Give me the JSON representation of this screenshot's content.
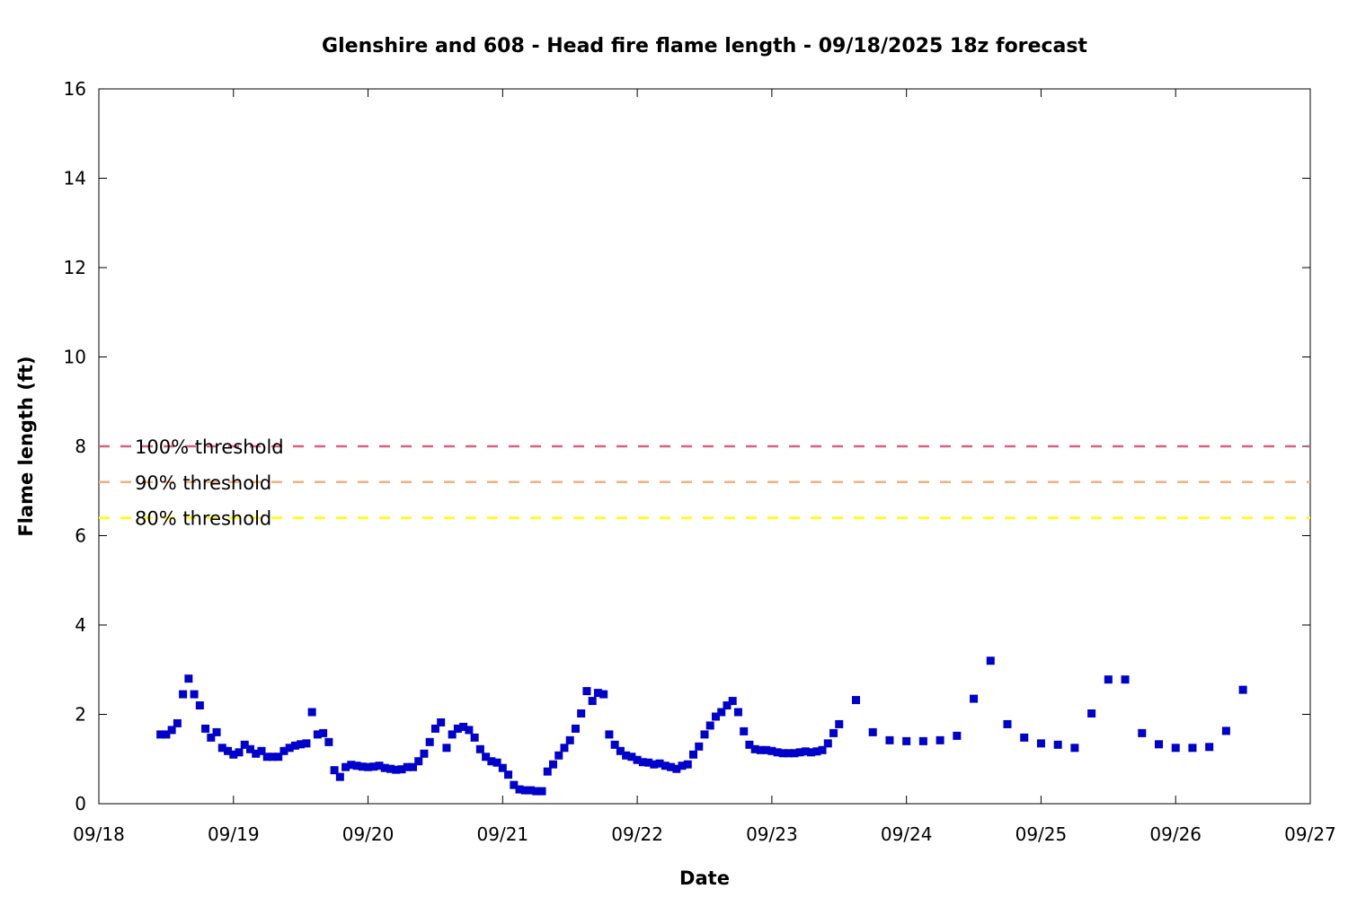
{
  "chart_data": {
    "type": "scatter",
    "title": "Glenshire and 608 - Head fire flame length - 09/18/2025 18z forecast",
    "xlabel": "Date",
    "ylabel": "Flame length (ft)",
    "xlim": [
      "09/18 00:00",
      "09/27 00:00"
    ],
    "ylim": [
      0,
      16
    ],
    "x_ticks": [
      "09/18",
      "09/19",
      "09/20",
      "09/21",
      "09/22",
      "09/23",
      "09/24",
      "09/25",
      "09/26",
      "09/27"
    ],
    "y_ticks": [
      "0",
      "2",
      "4",
      "6",
      "8",
      "10",
      "12",
      "14",
      "16"
    ],
    "grid": false,
    "legend": "left",
    "thresholds": [
      {
        "label": "100% threshold",
        "value": 8.0,
        "color": "#d9607f"
      },
      {
        "label": "90% threshold",
        "value": 7.2,
        "color": "#f2b080"
      },
      {
        "label": "80% threshold",
        "value": 6.4,
        "color": "#ffff00"
      }
    ],
    "series": [
      {
        "color": "#0000cc",
        "points": [
          [
            "09/18 11:00",
            1.55
          ],
          [
            "09/18 12:00",
            1.55
          ],
          [
            "09/18 13:00",
            1.65
          ],
          [
            "09/18 14:00",
            1.8
          ],
          [
            "09/18 15:00",
            2.45
          ],
          [
            "09/18 16:00",
            2.8
          ],
          [
            "09/18 17:00",
            2.45
          ],
          [
            "09/18 18:00",
            2.2
          ],
          [
            "09/18 19:00",
            1.68
          ],
          [
            "09/18 20:00",
            1.48
          ],
          [
            "09/18 21:00",
            1.6
          ],
          [
            "09/18 22:00",
            1.25
          ],
          [
            "09/18 23:00",
            1.18
          ],
          [
            "09/19 00:00",
            1.1
          ],
          [
            "09/19 01:00",
            1.15
          ],
          [
            "09/19 02:00",
            1.32
          ],
          [
            "09/19 03:00",
            1.22
          ],
          [
            "09/19 04:00",
            1.12
          ],
          [
            "09/19 05:00",
            1.18
          ],
          [
            "09/19 06:00",
            1.05
          ],
          [
            "09/19 07:00",
            1.05
          ],
          [
            "09/19 08:00",
            1.05
          ],
          [
            "09/19 09:00",
            1.18
          ],
          [
            "09/19 10:00",
            1.25
          ],
          [
            "09/19 11:00",
            1.3
          ],
          [
            "09/19 12:00",
            1.33
          ],
          [
            "09/19 13:00",
            1.35
          ],
          [
            "09/19 14:00",
            2.05
          ],
          [
            "09/19 15:00",
            1.55
          ],
          [
            "09/19 16:00",
            1.58
          ],
          [
            "09/19 17:00",
            1.38
          ],
          [
            "09/19 18:00",
            0.75
          ],
          [
            "09/19 19:00",
            0.6
          ],
          [
            "09/19 20:00",
            0.82
          ],
          [
            "09/19 21:00",
            0.87
          ],
          [
            "09/19 22:00",
            0.85
          ],
          [
            "09/19 23:00",
            0.83
          ],
          [
            "09/20 00:00",
            0.82
          ],
          [
            "09/20 01:00",
            0.83
          ],
          [
            "09/20 02:00",
            0.85
          ],
          [
            "09/20 03:00",
            0.8
          ],
          [
            "09/20 04:00",
            0.78
          ],
          [
            "09/20 05:00",
            0.76
          ],
          [
            "09/20 06:00",
            0.77
          ],
          [
            "09/20 07:00",
            0.82
          ],
          [
            "09/20 08:00",
            0.82
          ],
          [
            "09/20 09:00",
            0.95
          ],
          [
            "09/20 10:00",
            1.12
          ],
          [
            "09/20 11:00",
            1.38
          ],
          [
            "09/20 12:00",
            1.68
          ],
          [
            "09/20 13:00",
            1.82
          ],
          [
            "09/20 14:00",
            1.25
          ],
          [
            "09/20 15:00",
            1.55
          ],
          [
            "09/20 16:00",
            1.68
          ],
          [
            "09/20 17:00",
            1.72
          ],
          [
            "09/20 18:00",
            1.65
          ],
          [
            "09/20 19:00",
            1.48
          ],
          [
            "09/20 20:00",
            1.22
          ],
          [
            "09/20 21:00",
            1.05
          ],
          [
            "09/20 22:00",
            0.95
          ],
          [
            "09/20 23:00",
            0.92
          ],
          [
            "09/21 00:00",
            0.8
          ],
          [
            "09/21 01:00",
            0.65
          ],
          [
            "09/21 02:00",
            0.42
          ],
          [
            "09/21 03:00",
            0.32
          ],
          [
            "09/21 04:00",
            0.3
          ],
          [
            "09/21 05:00",
            0.3
          ],
          [
            "09/21 06:00",
            0.28
          ],
          [
            "09/21 07:00",
            0.28
          ],
          [
            "09/21 08:00",
            0.72
          ],
          [
            "09/21 09:00",
            0.88
          ],
          [
            "09/21 10:00",
            1.08
          ],
          [
            "09/21 11:00",
            1.25
          ],
          [
            "09/21 12:00",
            1.42
          ],
          [
            "09/21 13:00",
            1.68
          ],
          [
            "09/21 14:00",
            2.02
          ],
          [
            "09/21 15:00",
            2.52
          ],
          [
            "09/21 16:00",
            2.3
          ],
          [
            "09/21 17:00",
            2.48
          ],
          [
            "09/21 18:00",
            2.45
          ],
          [
            "09/21 19:00",
            1.55
          ],
          [
            "09/21 20:00",
            1.32
          ],
          [
            "09/21 21:00",
            1.18
          ],
          [
            "09/21 22:00",
            1.08
          ],
          [
            "09/21 23:00",
            1.05
          ],
          [
            "09/22 00:00",
            0.98
          ],
          [
            "09/22 01:00",
            0.93
          ],
          [
            "09/22 02:00",
            0.92
          ],
          [
            "09/22 03:00",
            0.88
          ],
          [
            "09/22 04:00",
            0.9
          ],
          [
            "09/22 05:00",
            0.85
          ],
          [
            "09/22 06:00",
            0.82
          ],
          [
            "09/22 07:00",
            0.78
          ],
          [
            "09/22 08:00",
            0.85
          ],
          [
            "09/22 09:00",
            0.88
          ],
          [
            "09/22 10:00",
            1.1
          ],
          [
            "09/22 11:00",
            1.28
          ],
          [
            "09/22 12:00",
            1.55
          ],
          [
            "09/22 13:00",
            1.75
          ],
          [
            "09/22 14:00",
            1.95
          ],
          [
            "09/22 15:00",
            2.05
          ],
          [
            "09/22 16:00",
            2.2
          ],
          [
            "09/22 17:00",
            2.3
          ],
          [
            "09/22 18:00",
            2.05
          ],
          [
            "09/22 19:00",
            1.62
          ],
          [
            "09/22 20:00",
            1.32
          ],
          [
            "09/22 21:00",
            1.22
          ],
          [
            "09/22 22:00",
            1.2
          ],
          [
            "09/22 23:00",
            1.2
          ],
          [
            "09/23 00:00",
            1.18
          ],
          [
            "09/23 01:00",
            1.15
          ],
          [
            "09/23 02:00",
            1.13
          ],
          [
            "09/23 03:00",
            1.13
          ],
          [
            "09/23 04:00",
            1.13
          ],
          [
            "09/23 05:00",
            1.15
          ],
          [
            "09/23 06:00",
            1.17
          ],
          [
            "09/23 07:00",
            1.15
          ],
          [
            "09/23 08:00",
            1.17
          ],
          [
            "09/23 09:00",
            1.2
          ],
          [
            "09/23 10:00",
            1.35
          ],
          [
            "09/23 11:00",
            1.58
          ],
          [
            "09/23 12:00",
            1.78
          ],
          [
            "09/23 15:00",
            2.32
          ],
          [
            "09/23 18:00",
            1.6
          ],
          [
            "09/23 21:00",
            1.42
          ],
          [
            "09/24 00:00",
            1.4
          ],
          [
            "09/24 03:00",
            1.4
          ],
          [
            "09/24 06:00",
            1.42
          ],
          [
            "09/24 09:00",
            1.52
          ],
          [
            "09/24 12:00",
            2.35
          ],
          [
            "09/24 15:00",
            3.2
          ],
          [
            "09/24 18:00",
            1.78
          ],
          [
            "09/24 21:00",
            1.48
          ],
          [
            "09/25 00:00",
            1.35
          ],
          [
            "09/25 03:00",
            1.32
          ],
          [
            "09/25 06:00",
            1.25
          ],
          [
            "09/25 09:00",
            2.02
          ],
          [
            "09/25 12:00",
            2.78
          ],
          [
            "09/25 15:00",
            2.78
          ],
          [
            "09/25 18:00",
            1.58
          ],
          [
            "09/25 21:00",
            1.33
          ],
          [
            "09/26 00:00",
            1.25
          ],
          [
            "09/26 03:00",
            1.25
          ],
          [
            "09/26 06:00",
            1.27
          ],
          [
            "09/26 09:00",
            1.63
          ],
          [
            "09/26 12:00",
            2.55
          ]
        ]
      }
    ]
  }
}
